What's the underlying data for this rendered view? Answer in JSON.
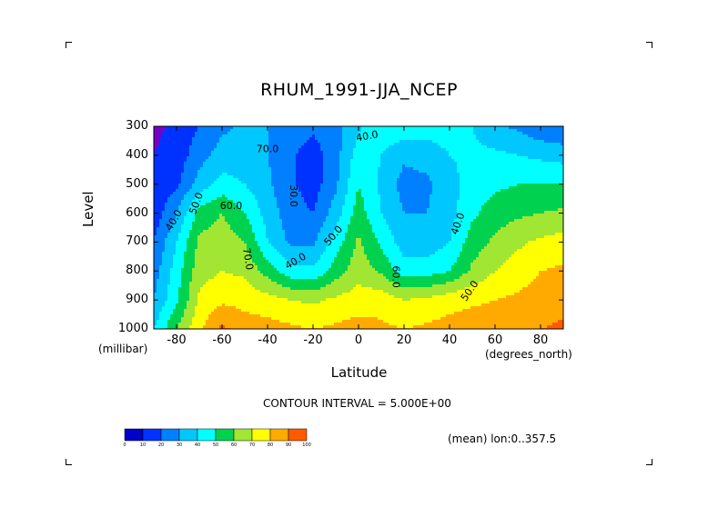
{
  "chart_data": {
    "type": "heatmap",
    "title": "RHUM_1991-JJA_NCEP",
    "xlabel": "Latitude",
    "ylabel": "Level",
    "y_units": "(millibar)",
    "x_units": "(degrees_north)",
    "xlim": [
      -90,
      90
    ],
    "ylim": [
      1000,
      300
    ],
    "x_ticks": [
      "-80",
      "-60",
      "-40",
      "-20",
      "0",
      "20",
      "40",
      "60",
      "80"
    ],
    "y_ticks": [
      "300",
      "400",
      "500",
      "600",
      "700",
      "800",
      "900",
      "1000"
    ],
    "contour_interval_text": "CONTOUR INTERVAL = 5.000E+00",
    "mean_text": "(mean) lon:0..357.5",
    "contour_labels": [
      "40.0",
      "50.0",
      "60.0",
      "70.0",
      "40.0",
      "50.0",
      "40.0",
      "30.0",
      "60.0",
      "40.0",
      "50.0",
      "70.0"
    ],
    "x": [
      -90,
      -80,
      -70,
      -60,
      -50,
      -40,
      -30,
      -20,
      -10,
      0,
      10,
      20,
      30,
      40,
      50,
      60,
      70,
      80,
      90
    ],
    "levels": [
      300,
      400,
      500,
      600,
      700,
      800,
      900,
      1000
    ],
    "z": [
      [
        8,
        12,
        20,
        28,
        32,
        30,
        25,
        22,
        26,
        38,
        48,
        46,
        45,
        45,
        40,
        32,
        28,
        22,
        20
      ],
      [
        10,
        14,
        26,
        34,
        34,
        30,
        22,
        15,
        26,
        45,
        40,
        32,
        34,
        40,
        42,
        42,
        40,
        38,
        36
      ],
      [
        12,
        18,
        34,
        44,
        40,
        32,
        22,
        15,
        28,
        50,
        38,
        26,
        28,
        36,
        45,
        48,
        50,
        50,
        50
      ],
      [
        14,
        30,
        54,
        60,
        50,
        36,
        24,
        20,
        35,
        55,
        40,
        30,
        30,
        36,
        48,
        55,
        58,
        60,
        62
      ],
      [
        20,
        40,
        62,
        66,
        60,
        40,
        28,
        28,
        45,
        62,
        48,
        35,
        34,
        40,
        55,
        62,
        68,
        72,
        74
      ],
      [
        25,
        45,
        66,
        70,
        68,
        56,
        44,
        42,
        55,
        66,
        58,
        45,
        45,
        50,
        62,
        70,
        75,
        80,
        82
      ],
      [
        30,
        48,
        72,
        78,
        76,
        74,
        70,
        68,
        72,
        75,
        76,
        70,
        72,
        76,
        78,
        80,
        82,
        84,
        86
      ],
      [
        40,
        60,
        78,
        92,
        86,
        84,
        82,
        80,
        82,
        84,
        82,
        80,
        82,
        84,
        86,
        86,
        88,
        90,
        92
      ]
    ],
    "colorbar": {
      "labels": [
        "0",
        "10",
        "20",
        "30",
        "40",
        "50",
        "60",
        "70",
        "80",
        "90",
        "100"
      ],
      "colors": [
        "#7800c8",
        "#0000c8",
        "#0032ff",
        "#0080ff",
        "#00c8ff",
        "#00ffff",
        "#00d250",
        "#a0e632",
        "#ffff00",
        "#ffaa00",
        "#ff5a00",
        "#ff0000"
      ]
    }
  }
}
